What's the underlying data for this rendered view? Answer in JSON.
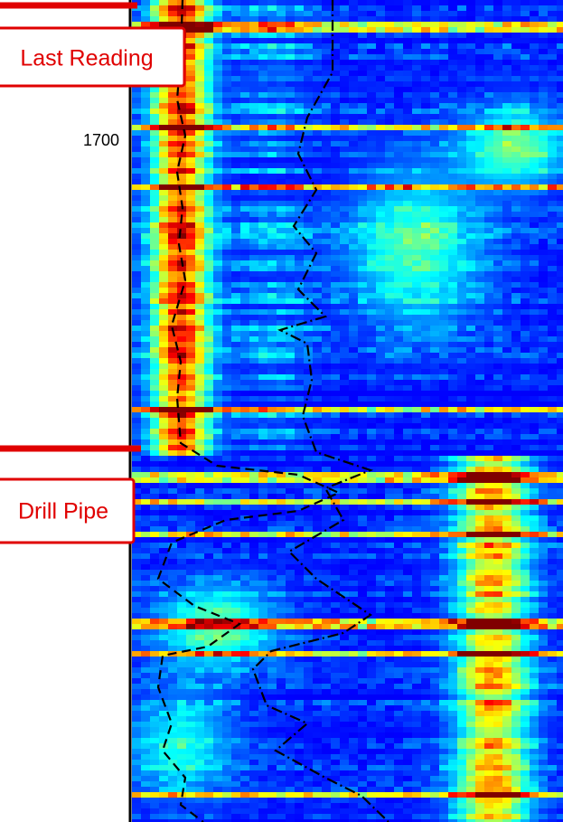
{
  "labels": {
    "last_reading": "Last Reading",
    "depth_tick": 1700,
    "drill_pipe": "Drill Pipe"
  }
}
